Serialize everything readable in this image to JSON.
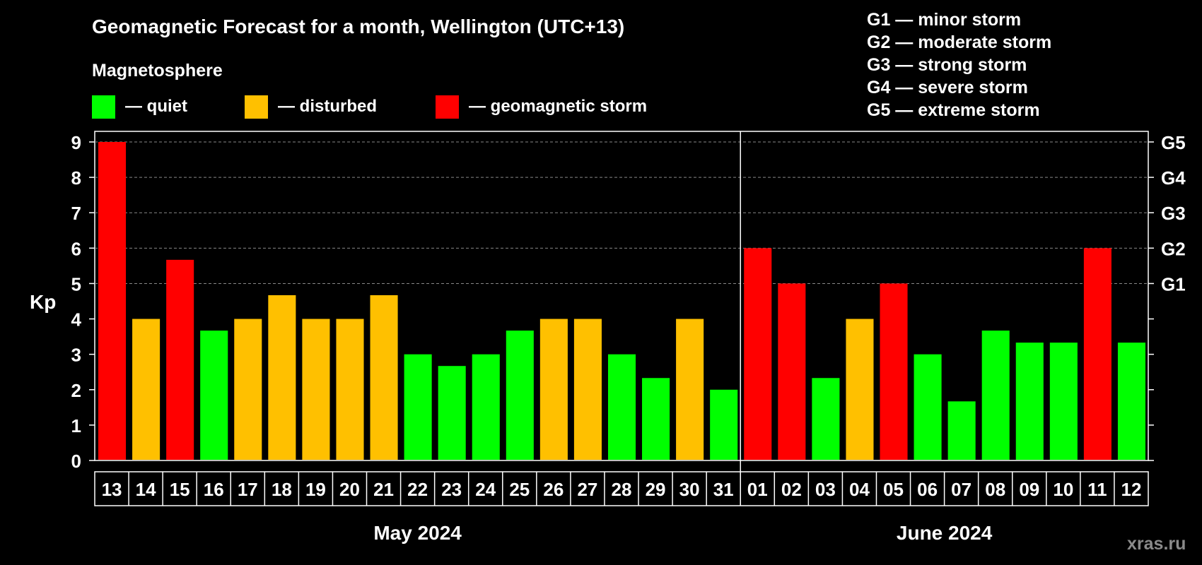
{
  "title": "Geomagnetic Forecast for a month, Wellington (UTC+13)",
  "legend": {
    "title": "Magnetosphere",
    "items": [
      {
        "label": "— quiet",
        "color": "#00ff00"
      },
      {
        "label": "— disturbed",
        "color": "#ffc000"
      },
      {
        "label": "— geomagnetic storm",
        "color": "#ff0000"
      }
    ]
  },
  "g_scale": [
    "G1 — minor storm",
    "G2 — moderate storm",
    "G3 — strong storm",
    "G4 — severe storm",
    "G5 — extreme storm"
  ],
  "watermark": "xras.ru",
  "chart_data": {
    "type": "bar",
    "ylabel": "Kp",
    "ylim": [
      0,
      9
    ],
    "y_ticks": [
      "0",
      "1",
      "2",
      "3",
      "4",
      "5",
      "6",
      "7",
      "8",
      "9"
    ],
    "right_ticks": [
      {
        "value": 5,
        "label": "G1"
      },
      {
        "value": 6,
        "label": "G2"
      },
      {
        "value": 7,
        "label": "G3"
      },
      {
        "value": 8,
        "label": "G4"
      },
      {
        "value": 9,
        "label": "G5"
      }
    ],
    "grid": "dashed horizontal at 5–9",
    "categories": [
      "13",
      "14",
      "15",
      "16",
      "17",
      "18",
      "19",
      "20",
      "21",
      "22",
      "23",
      "24",
      "25",
      "26",
      "27",
      "28",
      "29",
      "30",
      "31",
      "01",
      "02",
      "03",
      "04",
      "05",
      "06",
      "07",
      "08",
      "09",
      "10",
      "11",
      "12"
    ],
    "values": [
      9,
      4,
      5.67,
      3.67,
      4,
      4.67,
      4,
      4,
      4.67,
      3,
      2.67,
      3,
      3.67,
      4,
      4,
      3,
      2.33,
      4,
      2,
      6,
      5,
      2.33,
      4,
      5,
      3,
      1.67,
      3.67,
      3.33,
      3.33,
      6,
      3.33
    ],
    "status": [
      "storm",
      "disturbed",
      "storm",
      "quiet",
      "disturbed",
      "disturbed",
      "disturbed",
      "disturbed",
      "disturbed",
      "quiet",
      "quiet",
      "quiet",
      "quiet",
      "disturbed",
      "disturbed",
      "quiet",
      "quiet",
      "disturbed",
      "quiet",
      "storm",
      "storm",
      "quiet",
      "disturbed",
      "storm",
      "quiet",
      "quiet",
      "quiet",
      "quiet",
      "quiet",
      "storm",
      "quiet"
    ],
    "colors": {
      "quiet": "#00ff00",
      "disturbed": "#ffc000",
      "storm": "#ff0000"
    },
    "months": [
      {
        "label": "May 2024",
        "start": 0,
        "count": 19
      },
      {
        "label": "June 2024",
        "start": 19,
        "count": 12
      }
    ]
  }
}
